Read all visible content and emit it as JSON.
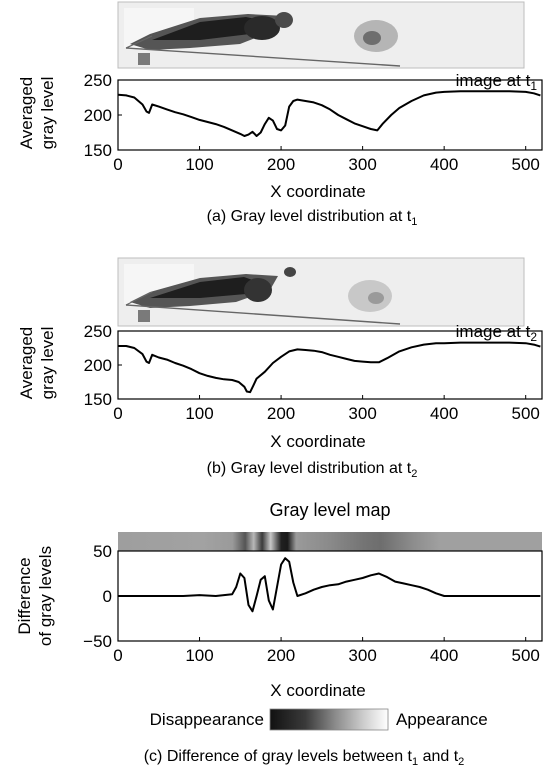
{
  "chart_data": [
    {
      "type": "line",
      "panel": "a",
      "image_label": "image at t",
      "image_label_sub": "1",
      "xlabel": "X coordinate",
      "ylabel_line1": "Averaged",
      "ylabel_line2": "gray level",
      "caption": "(a) Gray level distribution at t",
      "caption_sub": "1",
      "xlim": [
        0,
        520
      ],
      "ylim": [
        150,
        250
      ],
      "xticks": [
        0,
        100,
        200,
        300,
        400,
        500
      ],
      "yticks": [
        150,
        200,
        250
      ],
      "series": [
        {
          "x": [
            0,
            10,
            20,
            30,
            35,
            38,
            42,
            50,
            60,
            70,
            80,
            90,
            100,
            110,
            120,
            130,
            140,
            150,
            155,
            160,
            165,
            170,
            175,
            180,
            185,
            190,
            195,
            200,
            205,
            210,
            215,
            220,
            230,
            240,
            250,
            260,
            270,
            280,
            290,
            300,
            310,
            318,
            325,
            335,
            345,
            360,
            375,
            390,
            400,
            420,
            450,
            480,
            500,
            510,
            518
          ],
          "y": [
            229,
            228,
            225,
            215,
            205,
            203,
            215,
            212,
            208,
            204,
            201,
            197,
            193,
            190,
            187,
            183,
            178,
            173,
            170,
            172,
            176,
            170,
            175,
            187,
            196,
            192,
            180,
            178,
            185,
            212,
            220,
            222,
            220,
            218,
            214,
            208,
            200,
            194,
            188,
            184,
            180,
            178,
            188,
            200,
            210,
            220,
            228,
            232,
            233,
            234,
            234,
            234,
            233,
            231,
            228
          ]
        }
      ]
    },
    {
      "type": "line",
      "panel": "b",
      "image_label": "image at t",
      "image_label_sub": "2",
      "xlabel": "X coordinate",
      "ylabel_line1": "Averaged",
      "ylabel_line2": "gray level",
      "caption": "(b) Gray level distribution at t",
      "caption_sub": "2",
      "xlim": [
        0,
        520
      ],
      "ylim": [
        150,
        250
      ],
      "xticks": [
        0,
        100,
        200,
        300,
        400,
        500
      ],
      "yticks": [
        150,
        200,
        250
      ],
      "series": [
        {
          "x": [
            0,
            10,
            20,
            30,
            35,
            38,
            42,
            50,
            60,
            70,
            80,
            90,
            100,
            110,
            120,
            130,
            140,
            148,
            155,
            158,
            162,
            166,
            170,
            180,
            190,
            200,
            210,
            220,
            230,
            240,
            250,
            260,
            270,
            280,
            290,
            300,
            310,
            320,
            330,
            345,
            360,
            375,
            390,
            400,
            420,
            450,
            480,
            500,
            510,
            518
          ],
          "y": [
            228,
            228,
            225,
            216,
            205,
            203,
            215,
            211,
            208,
            203,
            199,
            194,
            188,
            184,
            181,
            179,
            178,
            175,
            168,
            161,
            160,
            170,
            180,
            190,
            203,
            212,
            220,
            223,
            222,
            221,
            219,
            215,
            212,
            209,
            206,
            205,
            204,
            204,
            210,
            220,
            226,
            230,
            232,
            232,
            233,
            233,
            233,
            232,
            230,
            227
          ]
        }
      ]
    },
    {
      "type": "line",
      "panel": "c",
      "title": "Gray level map",
      "xlabel": "X coordinate",
      "ylabel_line1": "Difference",
      "ylabel_line2": "of gray levels",
      "caption": "(c) Difference of gray levels between t",
      "caption_sub1": "1",
      "caption_mid": " and t",
      "caption_sub2": "2",
      "legend_left": "Disappearance",
      "legend_right": "Appearance",
      "xlim": [
        0,
        520
      ],
      "ylim": [
        -50,
        50
      ],
      "xticks": [
        0,
        100,
        200,
        300,
        400,
        500
      ],
      "yticks": [
        -50,
        0,
        50
      ],
      "series": [
        {
          "x": [
            0,
            20,
            40,
            60,
            80,
            100,
            120,
            130,
            140,
            145,
            150,
            155,
            160,
            165,
            170,
            175,
            180,
            185,
            190,
            195,
            200,
            205,
            210,
            215,
            220,
            230,
            240,
            250,
            260,
            270,
            280,
            290,
            300,
            310,
            320,
            330,
            340,
            350,
            360,
            370,
            380,
            390,
            400,
            420,
            450,
            480,
            500,
            518
          ],
          "y": [
            0,
            0,
            0,
            0,
            0,
            1,
            0,
            1,
            2,
            10,
            25,
            20,
            -10,
            -17,
            0,
            18,
            22,
            -5,
            -15,
            10,
            35,
            42,
            38,
            15,
            0,
            3,
            7,
            10,
            12,
            13,
            16,
            18,
            20,
            23,
            25,
            21,
            16,
            14,
            12,
            10,
            7,
            3,
            0,
            0,
            0,
            0,
            0,
            0
          ]
        }
      ]
    }
  ]
}
